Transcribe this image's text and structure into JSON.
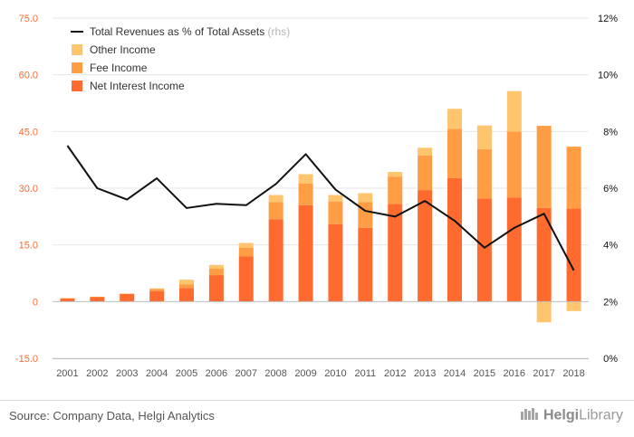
{
  "chart_data": {
    "type": "bar",
    "categories": [
      "2001",
      "2002",
      "2003",
      "2004",
      "2005",
      "2006",
      "2007",
      "2008",
      "2009",
      "2010",
      "2011",
      "2012",
      "2013",
      "2014",
      "2015",
      "2016",
      "2017",
      "2018"
    ],
    "series": [
      {
        "name": "Net Interest Income",
        "values": [
          0.8,
          1.2,
          2.0,
          2.8,
          3.6,
          7.0,
          12.0,
          21.8,
          25.5,
          20.5,
          19.5,
          25.8,
          29.5,
          32.7,
          27.3,
          27.5,
          24.8,
          24.6
        ]
      },
      {
        "name": "Fee Income",
        "values": [
          0.1,
          0.1,
          0.1,
          0.5,
          1.0,
          1.7,
          2.2,
          4.5,
          5.7,
          6.0,
          6.8,
          7.2,
          9.2,
          13.0,
          13.0,
          17.5,
          21.7,
          16.4
        ]
      },
      {
        "name": "Other Income",
        "values": [
          0.0,
          0.0,
          0.0,
          0.2,
          1.2,
          1.0,
          1.3,
          1.9,
          2.5,
          1.7,
          2.4,
          1.3,
          2.0,
          5.3,
          6.3,
          10.7,
          -5.5,
          -2.5
        ]
      },
      {
        "name": "Total Revenues as % of Total Assets",
        "type": "line",
        "axis": "right",
        "values": [
          7.5,
          6.0,
          5.6,
          6.35,
          5.3,
          5.45,
          5.4,
          6.15,
          7.2,
          5.95,
          5.2,
          5.0,
          5.55,
          4.85,
          3.9,
          4.6,
          5.1,
          3.1
        ]
      }
    ],
    "legend": {
      "position": "top-left",
      "entries": [
        {
          "label": "Total Revenues as % of Total Assets",
          "suffix": "(rhs)"
        },
        {
          "label": "Other Income"
        },
        {
          "label": "Fee Income"
        },
        {
          "label": "Net Interest Income"
        }
      ]
    },
    "left_axis": {
      "ylim": [
        -15,
        75
      ],
      "ticks": [
        "-15.0",
        "0",
        "15.0",
        "30.0",
        "45.0",
        "60.0",
        "75.0"
      ]
    },
    "right_axis": {
      "ylim": [
        0,
        12
      ],
      "ticks": [
        "0%",
        "2%",
        "4%",
        "6%",
        "8%",
        "10%",
        "12%"
      ]
    },
    "colors": {
      "Net Interest Income": "#ff6a2f",
      "Fee Income": "#ff9d45",
      "Other Income": "#ffc46e",
      "line": "#111111",
      "left_tick": "#ff6a2f",
      "right_tick": "#111111",
      "grid": "#e6e6e6"
    },
    "grid": true
  },
  "footer": {
    "source": "Source: Company Data, Helgi Analytics",
    "logo_text_a": "Helgi",
    "logo_text_b": "Library"
  }
}
